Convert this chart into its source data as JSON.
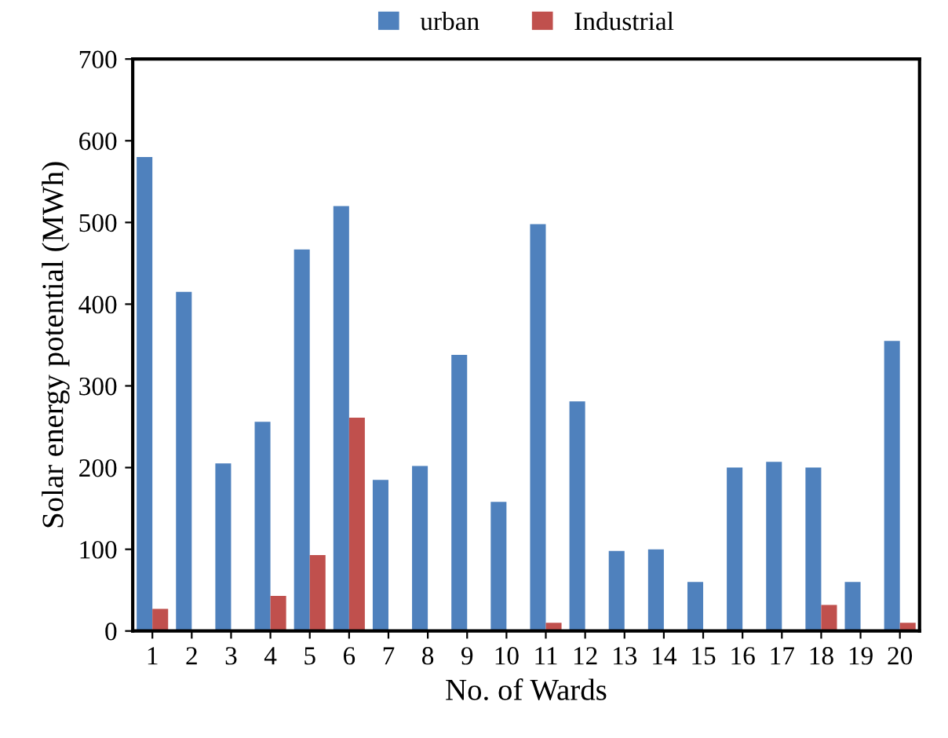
{
  "chart_data": {
    "type": "bar",
    "xlabel": "No. of Wards",
    "ylabel": "Solar energy potential (MWh)",
    "categories": [
      "1",
      "2",
      "3",
      "4",
      "5",
      "6",
      "7",
      "8",
      "9",
      "10",
      "11",
      "12",
      "13",
      "14",
      "15",
      "16",
      "17",
      "18",
      "19",
      "20"
    ],
    "series": [
      {
        "name": "urban",
        "color": "#4f81bd",
        "values": [
          580,
          415,
          205,
          256,
          467,
          520,
          185,
          202,
          338,
          158,
          498,
          281,
          98,
          100,
          60,
          200,
          207,
          200,
          60,
          355
        ]
      },
      {
        "name": "Industrial",
        "color": "#c0504d",
        "values": [
          27,
          0,
          0,
          43,
          93,
          261,
          0,
          0,
          0,
          0,
          10,
          0,
          0,
          0,
          0,
          0,
          0,
          32,
          0,
          10
        ]
      }
    ],
    "ylim": [
      0,
      700
    ],
    "yticks": [
      0,
      100,
      200,
      300,
      400,
      500,
      600,
      700
    ],
    "grid": false,
    "legend": "top"
  }
}
